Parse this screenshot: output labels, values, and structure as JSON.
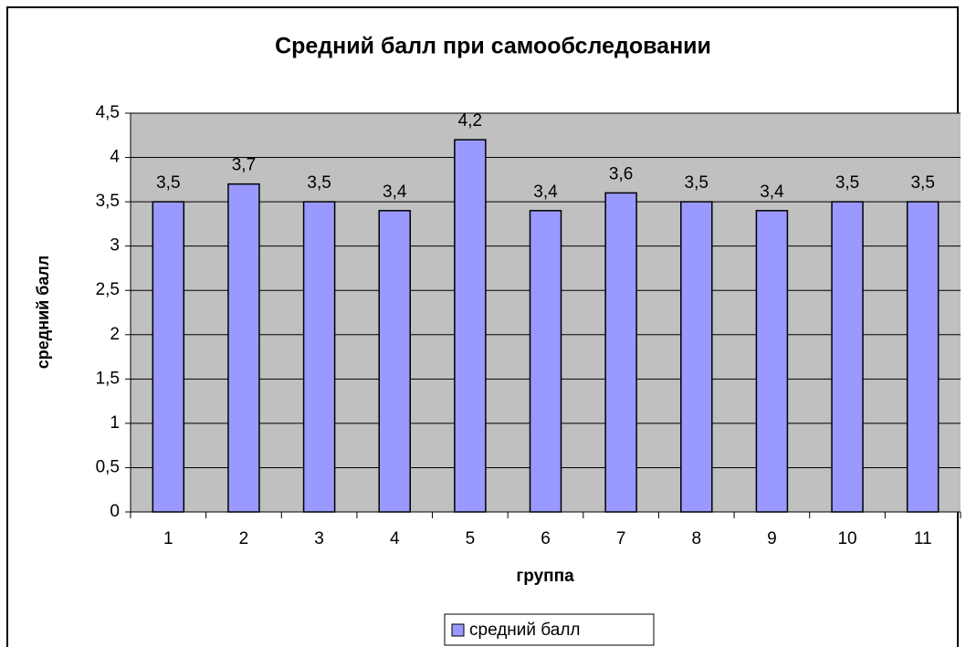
{
  "chart_data": {
    "type": "bar",
    "title": "Средний балл при самообследовании",
    "x_label": "группа",
    "y_label": "средний балл",
    "categories": [
      "1",
      "2",
      "3",
      "4",
      "5",
      "6",
      "7",
      "8",
      "9",
      "10",
      "11"
    ],
    "series": [
      {
        "name": "средний балл",
        "color": "#9999ff",
        "values": [
          3.5,
          3.7,
          3.5,
          3.4,
          4.2,
          3.4,
          3.6,
          3.5,
          3.4,
          3.5,
          3.5
        ],
        "value_labels": [
          "3,5",
          "3,7",
          "3,5",
          "3,4",
          "4,2",
          "3,4",
          "3,6",
          "3,5",
          "3,4",
          "3,5",
          "3,5"
        ]
      }
    ],
    "ylim": [
      0,
      4.5
    ],
    "yticks": [
      0,
      {
        "value": 0.5,
        "label": "0,5"
      },
      1,
      {
        "value": 1.5,
        "label": "1,5"
      },
      2,
      {
        "value": 2.5,
        "label": "2,5"
      },
      3,
      {
        "value": 3.5,
        "label": "3,5"
      },
      4,
      {
        "value": 4.5,
        "label": "4,5"
      }
    ],
    "grid": true,
    "legend": "bottom"
  }
}
